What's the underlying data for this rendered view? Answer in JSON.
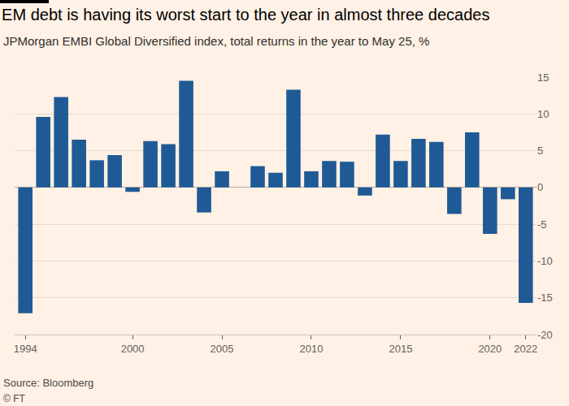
{
  "chart_data": {
    "type": "bar",
    "title": "EM debt is having its worst start to the year in almost three decades",
    "subtitle": "JPMorgan EMBI Global Diversified index, total returns in the year to May 25, %",
    "annotations": [
      "Source: Bloomberg",
      "© FT"
    ],
    "x": [
      1994,
      1995,
      1996,
      1997,
      1998,
      1999,
      2000,
      2001,
      2002,
      2003,
      2004,
      2005,
      2006,
      2007,
      2008,
      2009,
      2010,
      2011,
      2012,
      2013,
      2014,
      2015,
      2016,
      2017,
      2018,
      2019,
      2020,
      2021,
      2022
    ],
    "values": [
      -17.1,
      9.6,
      12.3,
      6.5,
      3.7,
      4.4,
      -0.6,
      6.3,
      5.9,
      14.5,
      -3.4,
      2.2,
      0,
      2.9,
      2.0,
      13.3,
      2.2,
      3.6,
      3.5,
      -1.1,
      7.2,
      3.6,
      6.6,
      6.2,
      -3.6,
      7.5,
      -6.3,
      -1.6,
      -15.7
    ],
    "color": "#1f5a96",
    "xlim": [
      1993.4,
      2022.6
    ],
    "xticks": [
      1994,
      2000,
      2005,
      2010,
      2015,
      2020,
      2022
    ],
    "ylim": [
      -20,
      15
    ],
    "yticks": [
      -20,
      -15,
      -10,
      -5,
      0,
      5,
      10,
      15
    ],
    "grid": true
  }
}
